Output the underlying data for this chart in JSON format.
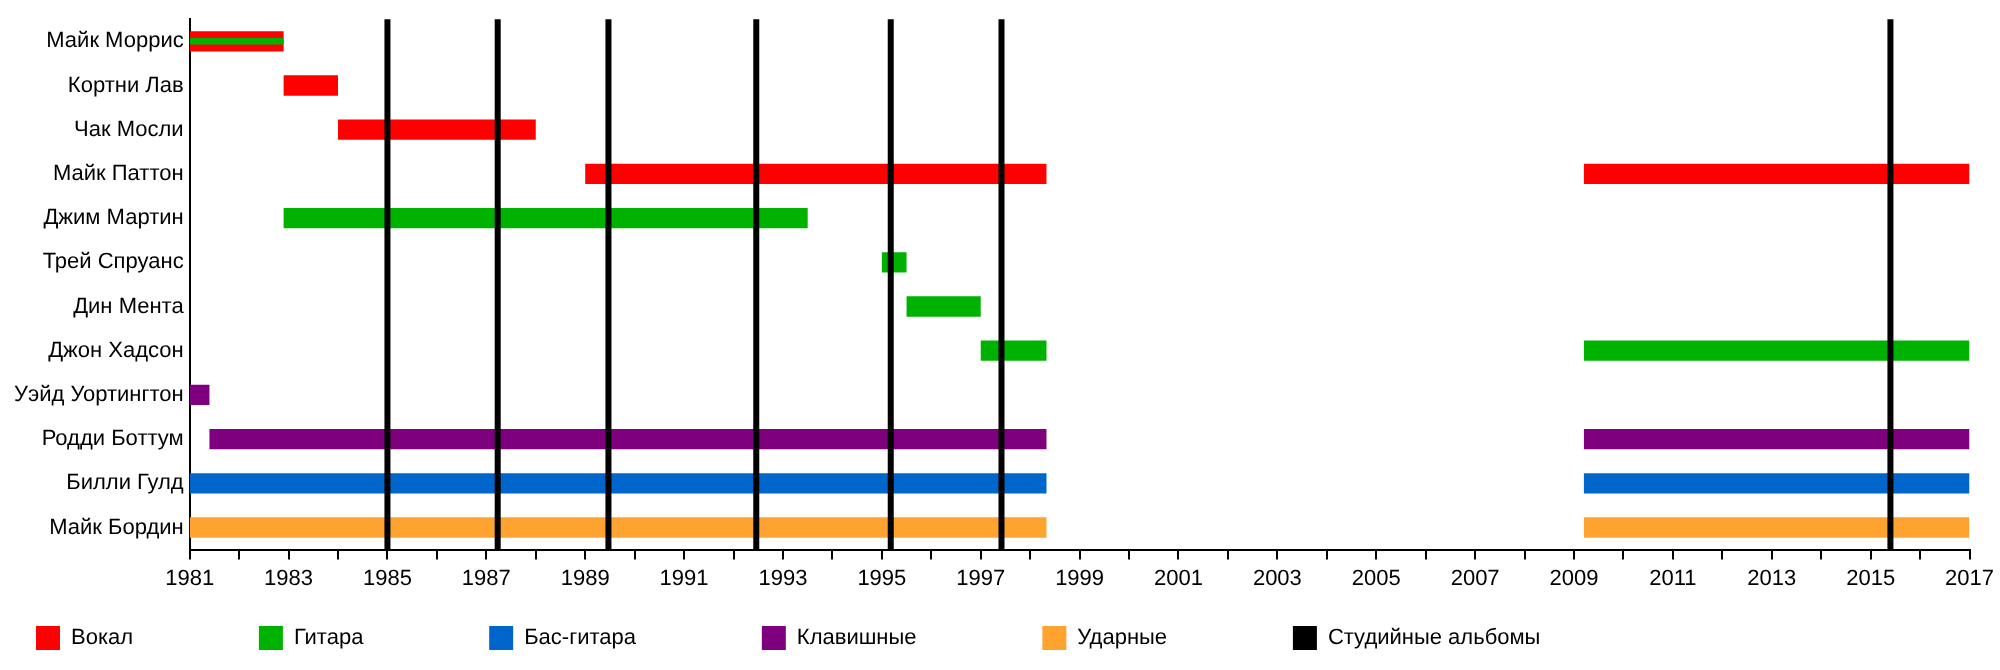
{
  "chart_data": {
    "type": "bar",
    "orientation": "horizontal",
    "categories": [
      "Майк Моррис",
      "Кортни Лав",
      "Чак Мосли",
      "Майк Паттон",
      "Джим Мартин",
      "Трей Спруанс",
      "Дин Мента",
      "Джон Хадсон",
      "Уэйд Уортингтон",
      "Родди Боттум",
      "Билли Гулд",
      "Майк Бордин"
    ],
    "series": [
      {
        "name": "Вокал",
        "color": "#ff0000",
        "base": [
          1981,
          1982.9,
          1984,
          1989,
          null,
          null,
          null,
          null,
          null,
          null,
          null,
          null
        ],
        "values": [
          1.9,
          1.1,
          4,
          9.33,
          null,
          null,
          null,
          null,
          null,
          null,
          null,
          null
        ]
      },
      {
        "name": "Гитара",
        "color": "#00b200",
        "base": [
          null,
          null,
          null,
          null,
          1982.9,
          1995,
          1995.5,
          1997,
          null,
          null,
          null,
          null
        ],
        "values": [
          null,
          null,
          null,
          null,
          10.6,
          0.5,
          1.5,
          1.33,
          null,
          null,
          null,
          null
        ]
      },
      {
        "name": "Бас-гитара",
        "color": "#0066cc",
        "base": [
          null,
          null,
          null,
          null,
          null,
          null,
          null,
          null,
          null,
          null,
          1981,
          null
        ],
        "values": [
          null,
          null,
          null,
          null,
          null,
          null,
          null,
          null,
          null,
          null,
          17.33,
          null
        ]
      },
      {
        "name": "Клавишные",
        "color": "#7f007f",
        "base": [
          null,
          null,
          null,
          null,
          null,
          null,
          null,
          null,
          1981,
          1981.4,
          null,
          null
        ],
        "values": [
          null,
          null,
          null,
          null,
          null,
          null,
          null,
          null,
          0.4,
          16.93,
          null,
          null
        ]
      },
      {
        "name": "Ударные",
        "color": "#ffa330",
        "base": [
          null,
          null,
          null,
          null,
          null,
          null,
          null,
          null,
          null,
          null,
          null,
          1981
        ],
        "values": [
          null,
          null,
          null,
          null,
          null,
          null,
          null,
          null,
          null,
          null,
          null,
          17.33
        ]
      },
      {
        "color": "#ff0000",
        "base": [
          null,
          null,
          null,
          2009.2,
          null,
          null,
          null,
          null,
          null,
          null,
          null,
          null
        ],
        "values": [
          null,
          null,
          null,
          7.8,
          null,
          null,
          null,
          null,
          null,
          null,
          null,
          null
        ]
      },
      {
        "color": "#00b200",
        "base": [
          null,
          null,
          null,
          null,
          null,
          null,
          null,
          2009.2,
          null,
          null,
          null,
          null
        ],
        "values": [
          null,
          null,
          null,
          null,
          null,
          null,
          null,
          7.8,
          null,
          null,
          null,
          null
        ]
      },
      {
        "color": "#7f007f",
        "base": [
          null,
          null,
          null,
          null,
          null,
          null,
          null,
          null,
          null,
          2009.2,
          null,
          null
        ],
        "values": [
          null,
          null,
          null,
          null,
          null,
          null,
          null,
          null,
          null,
          7.8,
          null,
          null
        ]
      },
      {
        "color": "#0066cc",
        "base": [
          null,
          null,
          null,
          null,
          null,
          null,
          null,
          null,
          null,
          null,
          2009.2,
          null
        ],
        "values": [
          null,
          null,
          null,
          null,
          null,
          null,
          null,
          null,
          null,
          null,
          7.8,
          null
        ]
      },
      {
        "color": "#ffa330",
        "base": [
          null,
          null,
          null,
          null,
          null,
          null,
          null,
          null,
          null,
          null,
          null,
          2009.2
        ],
        "values": [
          null,
          null,
          null,
          null,
          null,
          null,
          null,
          null,
          null,
          null,
          null,
          7.8
        ]
      },
      {
        "color": "#00b200",
        "base": [
          1981,
          null,
          null,
          null,
          null,
          null,
          null,
          null,
          null,
          null,
          null,
          null
        ],
        "values": [
          1.9,
          null,
          null,
          null,
          null,
          null,
          null,
          null,
          null,
          null,
          null,
          null
        ]
      }
    ],
    "xlim": [
      1981,
      2017
    ],
    "xticks": [
      1981,
      {
        "value": 1982,
        "label": null
      },
      1983,
      {
        "value": 1984,
        "label": null
      },
      1985,
      {
        "value": 1986,
        "label": null
      },
      1987,
      {
        "value": 1988,
        "label": null
      },
      1989,
      {
        "value": 1990,
        "label": null
      },
      1991,
      {
        "value": 1992,
        "label": null
      },
      1993,
      {
        "value": 1994,
        "label": null
      },
      1995,
      {
        "value": 1996,
        "label": null
      },
      1997,
      {
        "value": 1998,
        "label": null
      },
      1999,
      {
        "value": 2000,
        "label": null
      },
      2001,
      {
        "value": 2002,
        "label": null
      },
      2003,
      {
        "value": 2004,
        "label": null
      },
      2005,
      {
        "value": 2006,
        "label": null
      },
      2007,
      {
        "value": 2008,
        "label": null
      },
      2009,
      {
        "value": 2010,
        "label": null
      },
      2011,
      {
        "value": 2012,
        "label": null
      },
      2013,
      {
        "value": 2014,
        "label": null
      },
      2015,
      {
        "value": 2016,
        "label": null
      },
      2017
    ],
    "ref_lines": [
      {
        "axis": "x",
        "value": 1985,
        "color": "#000000",
        "label": "Студийные альбомы"
      },
      {
        "axis": "x",
        "value": 1987.23,
        "color": "#000000"
      },
      {
        "axis": "x",
        "value": 1989.47,
        "color": "#000000"
      },
      {
        "axis": "x",
        "value": 1992.46,
        "color": "#000000"
      },
      {
        "axis": "x",
        "value": 1995.18,
        "color": "#000000"
      },
      {
        "axis": "x",
        "value": 1997.42,
        "color": "#000000"
      },
      {
        "axis": "x",
        "value": 2015.4,
        "color": "#000000"
      }
    ],
    "grid": false,
    "legend": "bottom"
  }
}
